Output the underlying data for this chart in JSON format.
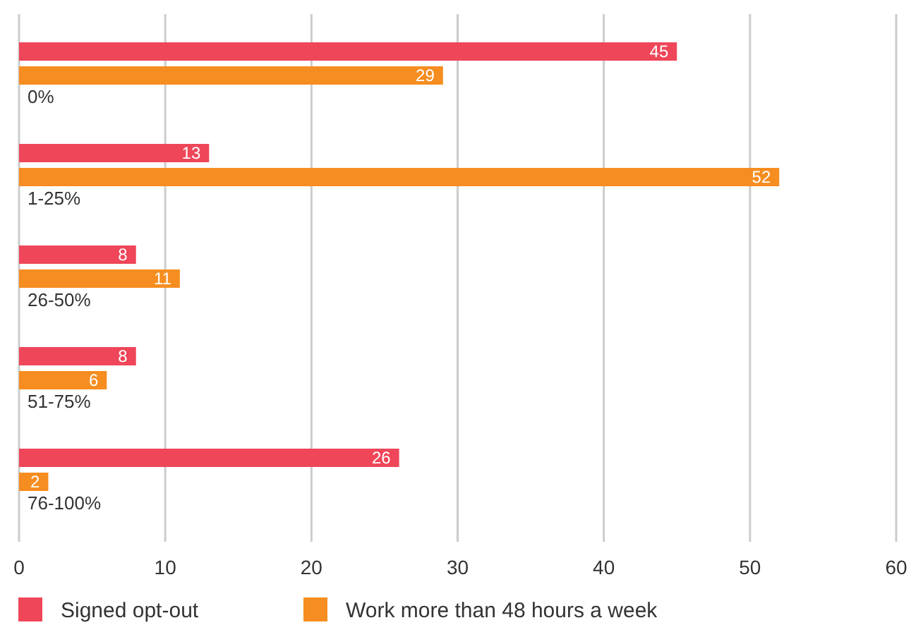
{
  "chart_data": {
    "type": "bar",
    "orientation": "horizontal",
    "categories": [
      "0%",
      "1-25%",
      "26-50%",
      "51-75%",
      "76-100%"
    ],
    "series": [
      {
        "name": "Signed opt-out",
        "color": "#ef4659",
        "values": [
          45,
          13,
          8,
          8,
          26
        ]
      },
      {
        "name": "Work more than 48 hours a week",
        "color": "#f68d20",
        "values": [
          29,
          52,
          11,
          6,
          2
        ]
      }
    ],
    "xlim": [
      0,
      60
    ],
    "xticks": [
      0,
      10,
      20,
      30,
      40,
      50,
      60
    ],
    "grid": "x",
    "legend": "bottom",
    "data_labels": true
  }
}
